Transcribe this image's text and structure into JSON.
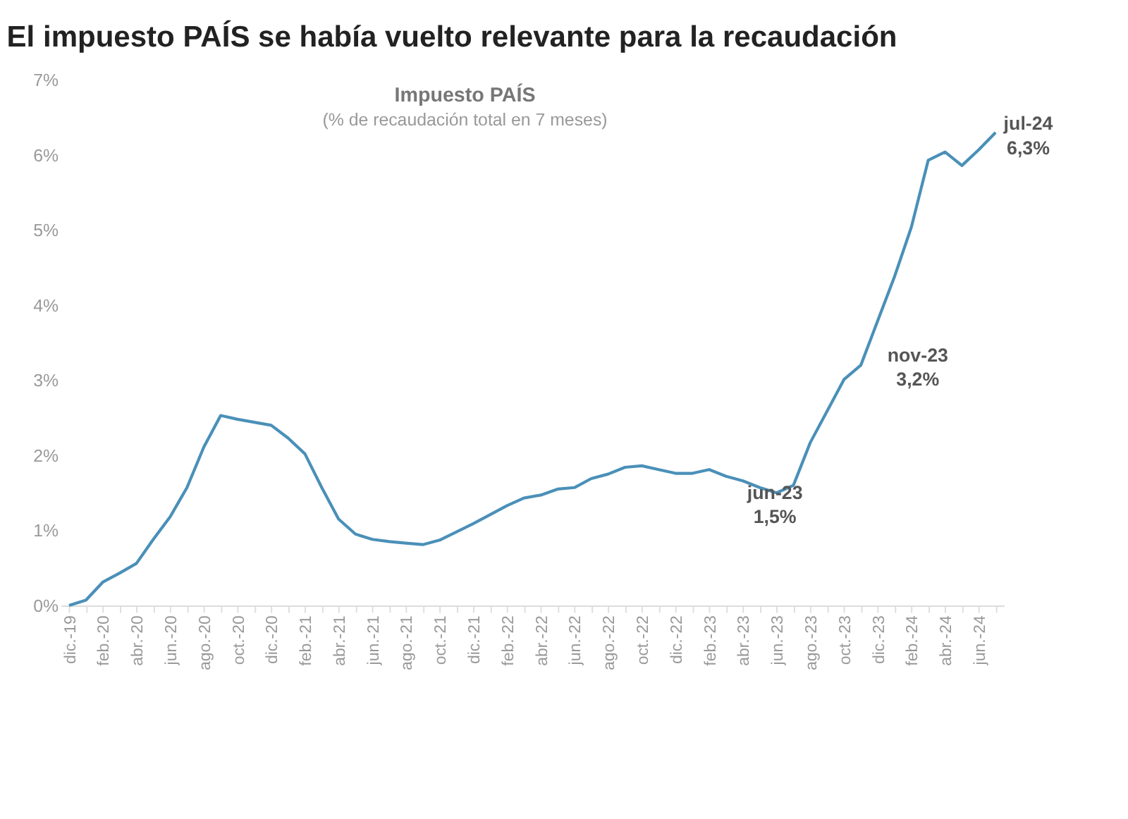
{
  "chart_data": {
    "type": "line",
    "title": "El impuesto PAÍS se había vuelto relevante para la recaudación",
    "subtitle": "Impuesto PAÍS\n(% de recaudación total en 7 meses)",
    "categories": [
      "dic.-19",
      null,
      "feb.-20",
      null,
      "abr.-20",
      null,
      "jun.-20",
      null,
      "ago.-20",
      null,
      "oct.-20",
      null,
      "dic.-20",
      null,
      "feb.-21",
      null,
      "abr.-21",
      null,
      "jun.-21",
      null,
      "ago.-21",
      null,
      "oct.-21",
      null,
      "dic.-21",
      null,
      "feb.-22",
      null,
      "abr.-22",
      null,
      "jun.-22",
      null,
      "ago.-22",
      null,
      "oct.-22",
      null,
      "dic.-22",
      null,
      "feb.-23",
      null,
      "abr.-23",
      null,
      "jun.-23",
      null,
      "ago.-23",
      null,
      "oct.-23",
      null,
      "dic.-23",
      null,
      "feb.-24",
      null,
      "abr.-24",
      null,
      "jun.-24",
      null
    ],
    "series": [
      {
        "color": "#4a90b8",
        "values": [
          0.0,
          0.07,
          0.31,
          0.43,
          0.56,
          0.88,
          1.18,
          1.57,
          2.11,
          2.53,
          2.48,
          2.44,
          2.4,
          2.23,
          2.02,
          1.57,
          1.15,
          0.95,
          0.88,
          0.85,
          0.83,
          0.81,
          0.87,
          0.98,
          1.09,
          1.21,
          1.33,
          1.43,
          1.47,
          1.55,
          1.57,
          1.69,
          1.75,
          1.84,
          1.86,
          1.81,
          1.76,
          1.76,
          1.81,
          1.72,
          1.66,
          1.57,
          1.5,
          1.6,
          2.17,
          2.59,
          3.01,
          3.2,
          3.79,
          4.38,
          5.04,
          5.93,
          6.04,
          5.86,
          6.07,
          6.3
        ]
      }
    ],
    "ylim": [
      0,
      7
    ],
    "yticks": [
      {
        "value": 0,
        "label": "0%"
      },
      {
        "value": 1,
        "label": "1%"
      },
      {
        "value": 2,
        "label": "2%"
      },
      {
        "value": 3,
        "label": "3%"
      },
      {
        "value": 4,
        "label": "4%"
      },
      {
        "value": 5,
        "label": "5%"
      },
      {
        "value": 6,
        "label": "6%"
      },
      {
        "value": 7,
        "label": "7%"
      }
    ],
    "grid": false,
    "marker": "none",
    "line_style": "solid",
    "annotations": [
      "jun-23\n1,5%",
      "nov-23\n3,2%",
      "jul-24\n6,3%"
    ]
  }
}
